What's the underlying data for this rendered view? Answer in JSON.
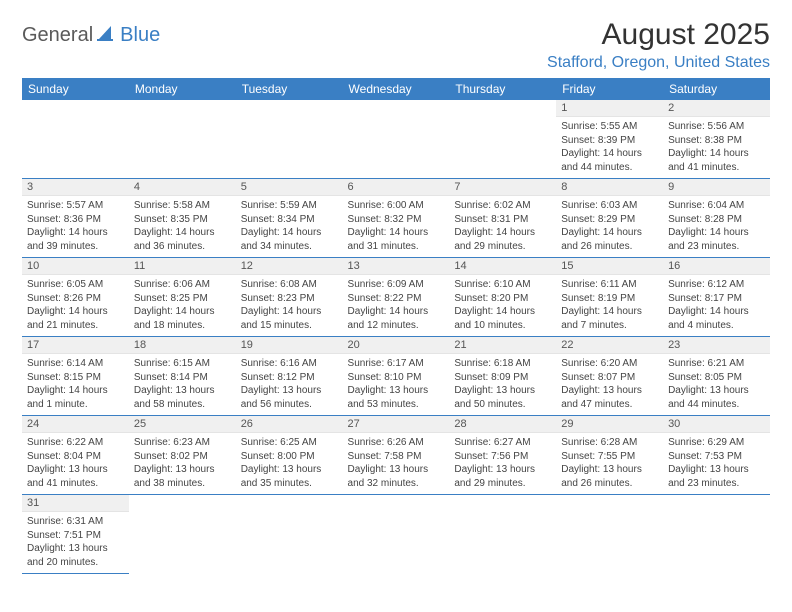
{
  "logo": {
    "text_general": "General",
    "text_blue": "Blue",
    "icon_name": "logo-sail-icon",
    "icon_color": "#3a7fc4"
  },
  "title": "August 2025",
  "location": "Stafford, Oregon, United States",
  "columns": [
    "Sunday",
    "Monday",
    "Tuesday",
    "Wednesday",
    "Thursday",
    "Friday",
    "Saturday"
  ],
  "styling": {
    "header_bg": "#3a7fc4",
    "header_text": "#ffffff",
    "daynum_bg": "#f0f0f0",
    "row_divider": "#3a7fc4",
    "body_text": "#444444",
    "title_color": "#333333",
    "location_color": "#3a7fc4",
    "font_family": "Arial",
    "title_fontsize": 30,
    "location_fontsize": 16,
    "header_fontsize": 12,
    "daynum_fontsize": 11,
    "body_fontsize": 10
  },
  "weeks": [
    [
      {
        "day": "",
        "lines": []
      },
      {
        "day": "",
        "lines": []
      },
      {
        "day": "",
        "lines": []
      },
      {
        "day": "",
        "lines": []
      },
      {
        "day": "",
        "lines": []
      },
      {
        "day": "1",
        "lines": [
          "Sunrise: 5:55 AM",
          "Sunset: 8:39 PM",
          "Daylight: 14 hours and 44 minutes."
        ]
      },
      {
        "day": "2",
        "lines": [
          "Sunrise: 5:56 AM",
          "Sunset: 8:38 PM",
          "Daylight: 14 hours and 41 minutes."
        ]
      }
    ],
    [
      {
        "day": "3",
        "lines": [
          "Sunrise: 5:57 AM",
          "Sunset: 8:36 PM",
          "Daylight: 14 hours and 39 minutes."
        ]
      },
      {
        "day": "4",
        "lines": [
          "Sunrise: 5:58 AM",
          "Sunset: 8:35 PM",
          "Daylight: 14 hours and 36 minutes."
        ]
      },
      {
        "day": "5",
        "lines": [
          "Sunrise: 5:59 AM",
          "Sunset: 8:34 PM",
          "Daylight: 14 hours and 34 minutes."
        ]
      },
      {
        "day": "6",
        "lines": [
          "Sunrise: 6:00 AM",
          "Sunset: 8:32 PM",
          "Daylight: 14 hours and 31 minutes."
        ]
      },
      {
        "day": "7",
        "lines": [
          "Sunrise: 6:02 AM",
          "Sunset: 8:31 PM",
          "Daylight: 14 hours and 29 minutes."
        ]
      },
      {
        "day": "8",
        "lines": [
          "Sunrise: 6:03 AM",
          "Sunset: 8:29 PM",
          "Daylight: 14 hours and 26 minutes."
        ]
      },
      {
        "day": "9",
        "lines": [
          "Sunrise: 6:04 AM",
          "Sunset: 8:28 PM",
          "Daylight: 14 hours and 23 minutes."
        ]
      }
    ],
    [
      {
        "day": "10",
        "lines": [
          "Sunrise: 6:05 AM",
          "Sunset: 8:26 PM",
          "Daylight: 14 hours and 21 minutes."
        ]
      },
      {
        "day": "11",
        "lines": [
          "Sunrise: 6:06 AM",
          "Sunset: 8:25 PM",
          "Daylight: 14 hours and 18 minutes."
        ]
      },
      {
        "day": "12",
        "lines": [
          "Sunrise: 6:08 AM",
          "Sunset: 8:23 PM",
          "Daylight: 14 hours and 15 minutes."
        ]
      },
      {
        "day": "13",
        "lines": [
          "Sunrise: 6:09 AM",
          "Sunset: 8:22 PM",
          "Daylight: 14 hours and 12 minutes."
        ]
      },
      {
        "day": "14",
        "lines": [
          "Sunrise: 6:10 AM",
          "Sunset: 8:20 PM",
          "Daylight: 14 hours and 10 minutes."
        ]
      },
      {
        "day": "15",
        "lines": [
          "Sunrise: 6:11 AM",
          "Sunset: 8:19 PM",
          "Daylight: 14 hours and 7 minutes."
        ]
      },
      {
        "day": "16",
        "lines": [
          "Sunrise: 6:12 AM",
          "Sunset: 8:17 PM",
          "Daylight: 14 hours and 4 minutes."
        ]
      }
    ],
    [
      {
        "day": "17",
        "lines": [
          "Sunrise: 6:14 AM",
          "Sunset: 8:15 PM",
          "Daylight: 14 hours and 1 minute."
        ]
      },
      {
        "day": "18",
        "lines": [
          "Sunrise: 6:15 AM",
          "Sunset: 8:14 PM",
          "Daylight: 13 hours and 58 minutes."
        ]
      },
      {
        "day": "19",
        "lines": [
          "Sunrise: 6:16 AM",
          "Sunset: 8:12 PM",
          "Daylight: 13 hours and 56 minutes."
        ]
      },
      {
        "day": "20",
        "lines": [
          "Sunrise: 6:17 AM",
          "Sunset: 8:10 PM",
          "Daylight: 13 hours and 53 minutes."
        ]
      },
      {
        "day": "21",
        "lines": [
          "Sunrise: 6:18 AM",
          "Sunset: 8:09 PM",
          "Daylight: 13 hours and 50 minutes."
        ]
      },
      {
        "day": "22",
        "lines": [
          "Sunrise: 6:20 AM",
          "Sunset: 8:07 PM",
          "Daylight: 13 hours and 47 minutes."
        ]
      },
      {
        "day": "23",
        "lines": [
          "Sunrise: 6:21 AM",
          "Sunset: 8:05 PM",
          "Daylight: 13 hours and 44 minutes."
        ]
      }
    ],
    [
      {
        "day": "24",
        "lines": [
          "Sunrise: 6:22 AM",
          "Sunset: 8:04 PM",
          "Daylight: 13 hours and 41 minutes."
        ]
      },
      {
        "day": "25",
        "lines": [
          "Sunrise: 6:23 AM",
          "Sunset: 8:02 PM",
          "Daylight: 13 hours and 38 minutes."
        ]
      },
      {
        "day": "26",
        "lines": [
          "Sunrise: 6:25 AM",
          "Sunset: 8:00 PM",
          "Daylight: 13 hours and 35 minutes."
        ]
      },
      {
        "day": "27",
        "lines": [
          "Sunrise: 6:26 AM",
          "Sunset: 7:58 PM",
          "Daylight: 13 hours and 32 minutes."
        ]
      },
      {
        "day": "28",
        "lines": [
          "Sunrise: 6:27 AM",
          "Sunset: 7:56 PM",
          "Daylight: 13 hours and 29 minutes."
        ]
      },
      {
        "day": "29",
        "lines": [
          "Sunrise: 6:28 AM",
          "Sunset: 7:55 PM",
          "Daylight: 13 hours and 26 minutes."
        ]
      },
      {
        "day": "30",
        "lines": [
          "Sunrise: 6:29 AM",
          "Sunset: 7:53 PM",
          "Daylight: 13 hours and 23 minutes."
        ]
      }
    ],
    [
      {
        "day": "31",
        "lines": [
          "Sunrise: 6:31 AM",
          "Sunset: 7:51 PM",
          "Daylight: 13 hours and 20 minutes."
        ]
      },
      {
        "day": "",
        "lines": []
      },
      {
        "day": "",
        "lines": []
      },
      {
        "day": "",
        "lines": []
      },
      {
        "day": "",
        "lines": []
      },
      {
        "day": "",
        "lines": []
      },
      {
        "day": "",
        "lines": []
      }
    ]
  ]
}
